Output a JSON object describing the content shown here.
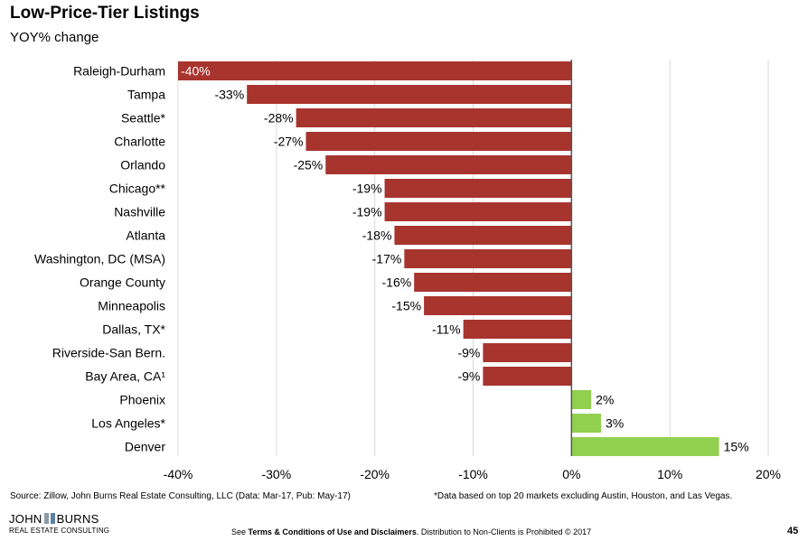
{
  "title": "Low-Price-Tier Listings",
  "subtitle": "YOY% change",
  "chart_data": {
    "type": "bar",
    "orientation": "horizontal",
    "categories": [
      "Raleigh-Durham",
      "Tampa",
      "Seattle*",
      "Charlotte",
      "Orlando",
      "Chicago**",
      "Nashville",
      "Atlanta",
      "Washington, DC (MSA)",
      "Orange County",
      "Minneapolis",
      "Dallas, TX*",
      "Riverside-San Bern.",
      "Bay Area, CA¹",
      "Phoenix",
      "Los Angeles*",
      "Denver"
    ],
    "values": [
      -40,
      -33,
      -28,
      -27,
      -25,
      -19,
      -19,
      -18,
      -17,
      -16,
      -15,
      -11,
      -9,
      -9,
      2,
      3,
      15
    ],
    "data_labels": [
      "-40%",
      "-33%",
      "-28%",
      "-27%",
      "-25%",
      "-19%",
      "-19%",
      "-18%",
      "-17%",
      "-16%",
      "-15%",
      "-11%",
      "-9%",
      "-9%",
      "2%",
      "3%",
      "15%"
    ],
    "xlim": [
      -40,
      20
    ],
    "xticks": [
      -40,
      -30,
      -20,
      -10,
      0,
      10,
      20
    ],
    "xtick_labels": [
      "-40%",
      "-30%",
      "-20%",
      "-10%",
      "0%",
      "10%",
      "20%"
    ],
    "grid": "vertical",
    "colors": {
      "negative": "#a8342e",
      "positive": "#92d050",
      "grid": "#d9d9d9",
      "axis": "#555555"
    }
  },
  "footer": {
    "source": "Source: Zillow, John Burns Real Estate Consulting, LLC (Data: Mar-17, Pub: May-17)",
    "note": "*Data based on top 20 markets excluding Austin, Houston, and Las Vegas.",
    "logo_left": "JOHN",
    "logo_right": "BURNS",
    "logo_sub": "REAL ESTATE CONSULTING",
    "terms_prefix": "See ",
    "terms_bold": "Terms & Conditions of Use and Disclaimers",
    "terms_suffix": ". Distribution to Non-Clients is Prohibited © 2017",
    "page_number": "45"
  }
}
